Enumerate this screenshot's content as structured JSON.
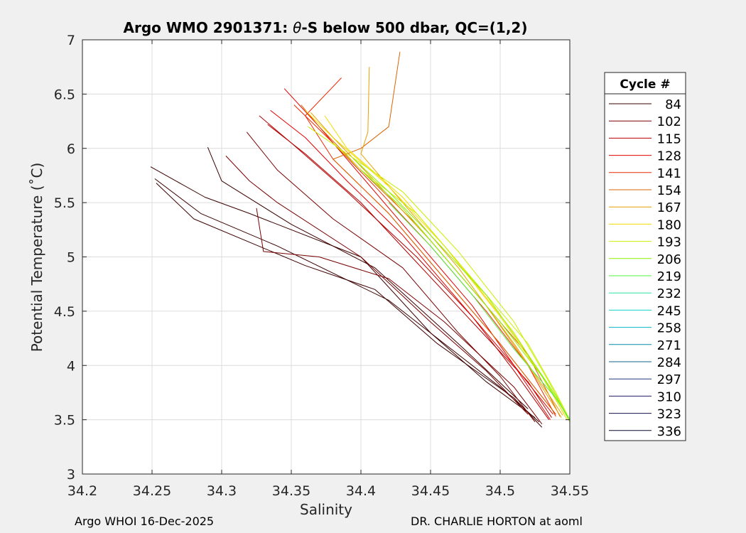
{
  "chart_data": {
    "type": "line",
    "title": "Argo WMO 2901371: θ-S below 500 dbar,  QC=(1,2)",
    "title_parts": [
      "Argo WMO 2901371: ",
      "θ",
      "-S below 500 dbar,  QC=(1,2)"
    ],
    "xlabel": "Salinity",
    "ylabel": "Potential Temperature (˚C)",
    "xlim": [
      34.2,
      34.55
    ],
    "ylim": [
      3,
      7
    ],
    "xticks": [
      34.2,
      34.25,
      34.3,
      34.35,
      34.4,
      34.45,
      34.5,
      34.55
    ],
    "xtick_labels": [
      "34.2",
      "34.25",
      "34.3",
      "34.35",
      "34.4",
      "34.45",
      "34.5",
      "34.55"
    ],
    "yticks": [
      3,
      3.5,
      4,
      4.5,
      5,
      5.5,
      6,
      6.5,
      7
    ],
    "ytick_labels": [
      "3",
      "3.5",
      "4",
      "4.5",
      "5",
      "5.5",
      "6",
      "6.5",
      "7"
    ],
    "grid": true,
    "legend_title": "Cycle #",
    "legend_position": "right",
    "legend": [
      {
        "label": "84",
        "color": "#3c0000"
      },
      {
        "label": "102",
        "color": "#780000"
      },
      {
        "label": "115",
        "color": "#b40000"
      },
      {
        "label": "128",
        "color": "#e60000"
      },
      {
        "label": "141",
        "color": "#f02800"
      },
      {
        "label": "154",
        "color": "#dc6400"
      },
      {
        "label": "167",
        "color": "#e6a000"
      },
      {
        "label": "180",
        "color": "#f0dc00"
      },
      {
        "label": "193",
        "color": "#c8f000"
      },
      {
        "label": "206",
        "color": "#8cf000"
      },
      {
        "label": "219",
        "color": "#50f03c"
      },
      {
        "label": "232",
        "color": "#28e6a0"
      },
      {
        "label": "245",
        "color": "#14d2c8"
      },
      {
        "label": "258",
        "color": "#0ab4c8"
      },
      {
        "label": "271",
        "color": "#0a8caa"
      },
      {
        "label": "284",
        "color": "#14648c"
      },
      {
        "label": "297",
        "color": "#1e3c78"
      },
      {
        "label": "310",
        "color": "#1e1e64"
      },
      {
        "label": "323",
        "color": "#14144b"
      },
      {
        "label": "336",
        "color": "#0a0a32"
      }
    ],
    "series": [
      {
        "name": "84",
        "color": "#3c0000",
        "x": [
          34.249,
          34.288,
          34.32,
          34.4,
          34.45,
          34.49,
          34.525
        ],
        "y": [
          5.83,
          5.55,
          5.4,
          5.0,
          4.3,
          3.85,
          3.52
        ]
      },
      {
        "name": "84",
        "color": "#3c0000",
        "x": [
          34.252,
          34.285,
          34.34,
          34.42,
          34.47,
          34.5,
          34.528
        ],
        "y": [
          5.72,
          5.4,
          5.1,
          4.6,
          4.1,
          3.8,
          3.48
        ]
      },
      {
        "name": "84",
        "color": "#3c0000",
        "x": [
          34.253,
          34.28,
          34.36,
          34.41,
          34.455,
          34.51,
          34.53
        ],
        "y": [
          5.68,
          5.35,
          4.92,
          4.7,
          4.2,
          3.7,
          3.43
        ]
      },
      {
        "name": "84",
        "color": "#3c0000",
        "x": [
          34.29,
          34.3,
          34.35,
          34.41,
          34.47,
          34.52
        ],
        "y": [
          6.01,
          5.7,
          5.3,
          4.9,
          4.2,
          3.6
        ]
      },
      {
        "name": "102",
        "color": "#780000",
        "x": [
          34.303,
          34.32,
          34.34,
          34.4,
          34.45,
          34.49,
          34.52
        ],
        "y": [
          5.93,
          5.7,
          5.5,
          5.0,
          4.4,
          3.95,
          3.55
        ]
      },
      {
        "name": "102",
        "color": "#780000",
        "x": [
          34.318,
          34.34,
          34.38,
          34.43,
          34.47,
          34.5,
          34.525
        ],
        "y": [
          6.15,
          5.8,
          5.35,
          4.9,
          4.3,
          3.9,
          3.48
        ]
      },
      {
        "name": "102",
        "color": "#780000",
        "x": [
          34.325,
          34.33,
          34.37,
          34.42,
          34.46,
          34.51,
          34.53
        ],
        "y": [
          5.45,
          5.05,
          5.0,
          4.8,
          4.4,
          3.8,
          3.46
        ]
      },
      {
        "name": "115",
        "color": "#b40000",
        "x": [
          34.327,
          34.35,
          34.39,
          34.44,
          34.48,
          34.51,
          34.535
        ],
        "y": [
          6.3,
          6.05,
          5.6,
          5.0,
          4.45,
          3.95,
          3.5
        ]
      },
      {
        "name": "115",
        "color": "#b40000",
        "x": [
          34.333,
          34.36,
          34.4,
          34.44,
          34.48,
          34.52,
          34.537
        ],
        "y": [
          6.22,
          5.95,
          5.5,
          4.95,
          4.4,
          3.85,
          3.52
        ]
      },
      {
        "name": "128",
        "color": "#e60000",
        "x": [
          34.335,
          34.36,
          34.39,
          34.43,
          34.47,
          34.51,
          34.538
        ],
        "y": [
          6.35,
          6.1,
          5.7,
          5.2,
          4.6,
          4.0,
          3.55
        ]
      },
      {
        "name": "128",
        "color": "#e60000",
        "x": [
          34.345,
          34.37,
          34.4,
          34.44,
          34.48,
          34.51,
          34.536
        ],
        "y": [
          6.55,
          6.2,
          5.75,
          5.15,
          4.55,
          4.0,
          3.5
        ]
      },
      {
        "name": "141",
        "color": "#f02800",
        "x": [
          34.352,
          34.38,
          34.41,
          34.45,
          34.49,
          34.52,
          34.54
        ],
        "y": [
          6.4,
          6.05,
          5.65,
          5.1,
          4.5,
          4.0,
          3.53
        ]
      },
      {
        "name": "141",
        "color": "#f02800",
        "x": [
          34.386,
          34.36,
          34.38,
          34.42,
          34.46,
          34.5,
          34.54
        ],
        "y": [
          6.65,
          6.3,
          5.9,
          5.4,
          4.8,
          4.2,
          3.55
        ]
      },
      {
        "name": "154",
        "color": "#dc6400",
        "x": [
          34.428,
          34.42,
          34.4,
          34.38,
          34.42,
          34.46,
          34.5,
          34.54
        ],
        "y": [
          6.89,
          6.2,
          6.0,
          5.9,
          5.4,
          4.8,
          4.2,
          3.55
        ]
      },
      {
        "name": "154",
        "color": "#dc6400",
        "x": [
          34.357,
          34.37,
          34.4,
          34.44,
          34.48,
          34.52,
          34.543
        ],
        "y": [
          6.4,
          6.2,
          5.8,
          5.3,
          4.7,
          4.1,
          3.53
        ]
      },
      {
        "name": "167",
        "color": "#e6a000",
        "x": [
          34.406,
          34.405,
          34.4,
          34.43,
          34.47,
          34.51,
          34.545
        ],
        "y": [
          6.75,
          6.15,
          5.95,
          5.5,
          4.9,
          4.2,
          3.54
        ]
      },
      {
        "name": "167",
        "color": "#e6a000",
        "x": [
          34.364,
          34.38,
          34.41,
          34.45,
          34.49,
          34.52,
          34.544
        ],
        "y": [
          6.33,
          6.1,
          5.7,
          5.15,
          4.55,
          4.0,
          3.52
        ]
      },
      {
        "name": "180",
        "color": "#f0dc00",
        "x": [
          34.36,
          34.38,
          34.42,
          34.46,
          34.5,
          34.53,
          34.546
        ],
        "y": [
          6.35,
          6.1,
          5.65,
          5.1,
          4.45,
          3.9,
          3.55
        ]
      },
      {
        "name": "180",
        "color": "#f0dc00",
        "x": [
          34.374,
          34.39,
          34.43,
          34.47,
          34.51,
          34.535,
          34.548
        ],
        "y": [
          6.3,
          6.0,
          5.55,
          4.95,
          4.3,
          3.8,
          3.5
        ]
      },
      {
        "name": "193",
        "color": "#c8f000",
        "x": [
          34.362,
          34.39,
          34.43,
          34.47,
          34.51,
          34.535,
          34.549
        ],
        "y": [
          6.2,
          5.95,
          5.6,
          5.05,
          4.4,
          3.85,
          3.52
        ]
      },
      {
        "name": "193",
        "color": "#c8f000",
        "x": [
          34.38,
          34.4,
          34.44,
          34.48,
          34.52,
          34.54,
          34.55
        ],
        "y": [
          6.05,
          5.8,
          5.4,
          4.8,
          4.2,
          3.75,
          3.5
        ]
      },
      {
        "name": "206",
        "color": "#8cf000",
        "x": [
          34.395,
          34.42,
          34.45,
          34.49,
          34.52,
          34.54,
          34.55
        ],
        "y": [
          5.9,
          5.6,
          5.2,
          4.65,
          4.1,
          3.72,
          3.48
        ]
      },
      {
        "name": "206",
        "color": "#8cf000",
        "x": [
          34.4,
          34.43,
          34.46,
          34.5,
          34.53,
          34.55
        ],
        "y": [
          5.8,
          5.45,
          5.0,
          4.4,
          3.9,
          3.5
        ]
      },
      {
        "name": "219",
        "color": "#50f03c",
        "x": [
          34.42,
          34.45,
          34.48,
          34.51,
          34.54,
          34.55
        ],
        "y": [
          5.5,
          5.1,
          4.65,
          4.15,
          3.7,
          3.5
        ]
      }
    ]
  },
  "footer": {
    "left": "Argo WHOI 16-Dec-2025",
    "right": "DR. CHARLIE HORTON at aoml"
  }
}
